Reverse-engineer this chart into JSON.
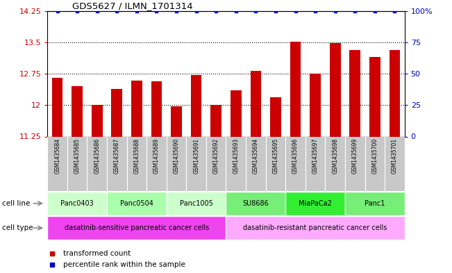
{
  "title": "GDS5627 / ILMN_1701314",
  "samples": [
    "GSM1435684",
    "GSM1435685",
    "GSM1435686",
    "GSM1435687",
    "GSM1435688",
    "GSM1435689",
    "GSM1435690",
    "GSM1435691",
    "GSM1435692",
    "GSM1435693",
    "GSM1435694",
    "GSM1435695",
    "GSM1435696",
    "GSM1435697",
    "GSM1435698",
    "GSM1435699",
    "GSM1435700",
    "GSM1435701"
  ],
  "bar_values": [
    12.65,
    12.45,
    12.0,
    12.38,
    12.58,
    12.57,
    11.98,
    12.72,
    12.0,
    12.35,
    12.82,
    12.18,
    13.52,
    12.75,
    13.48,
    13.32,
    13.15,
    13.32
  ],
  "percentile_values": [
    100,
    100,
    100,
    100,
    100,
    100,
    100,
    100,
    100,
    100,
    100,
    100,
    100,
    100,
    100,
    100,
    100,
    100
  ],
  "bar_color": "#cc0000",
  "dot_color": "#0000cc",
  "ylim_left": [
    11.25,
    14.25
  ],
  "ylim_right": [
    0,
    100
  ],
  "yticks_left": [
    11.25,
    12.0,
    12.75,
    13.5,
    14.25
  ],
  "yticks_right": [
    0,
    25,
    50,
    75,
    100
  ],
  "ytick_labels_left": [
    "11.25",
    "12",
    "12.75",
    "13.5",
    "14.25"
  ],
  "ytick_labels_right": [
    "0",
    "25",
    "50",
    "75",
    "100%"
  ],
  "cell_lines": [
    {
      "label": "Panc0403",
      "start": 0,
      "end": 3,
      "color": "#ccffcc"
    },
    {
      "label": "Panc0504",
      "start": 3,
      "end": 6,
      "color": "#aaffaa"
    },
    {
      "label": "Panc1005",
      "start": 6,
      "end": 9,
      "color": "#ccffcc"
    },
    {
      "label": "SU8686",
      "start": 9,
      "end": 12,
      "color": "#77ee77"
    },
    {
      "label": "MiaPaCa2",
      "start": 12,
      "end": 15,
      "color": "#33ee33"
    },
    {
      "label": "Panc1",
      "start": 15,
      "end": 18,
      "color": "#77ee77"
    }
  ],
  "cell_types": [
    {
      "label": "dasatinib-sensitive pancreatic cancer cells",
      "start": 0,
      "end": 9,
      "color": "#ee44ee"
    },
    {
      "label": "dasatinib-resistant pancreatic cancer cells",
      "start": 9,
      "end": 18,
      "color": "#ffaaff"
    }
  ],
  "sample_bg_color": "#c8c8c8",
  "sample_border_color": "#ffffff",
  "legend_tc_label": "transformed count",
  "legend_pr_label": "percentile rank within the sample",
  "legend_tc_color": "#cc0000",
  "legend_pr_color": "#0000cc",
  "bg_color": "#ffffff",
  "grid_color": "#000000",
  "tick_color_left": "#cc0000",
  "tick_color_right": "#0000cc",
  "bar_width": 0.55,
  "cell_line_label": "cell line",
  "cell_type_label": "cell type",
  "arrow_color": "#888888"
}
